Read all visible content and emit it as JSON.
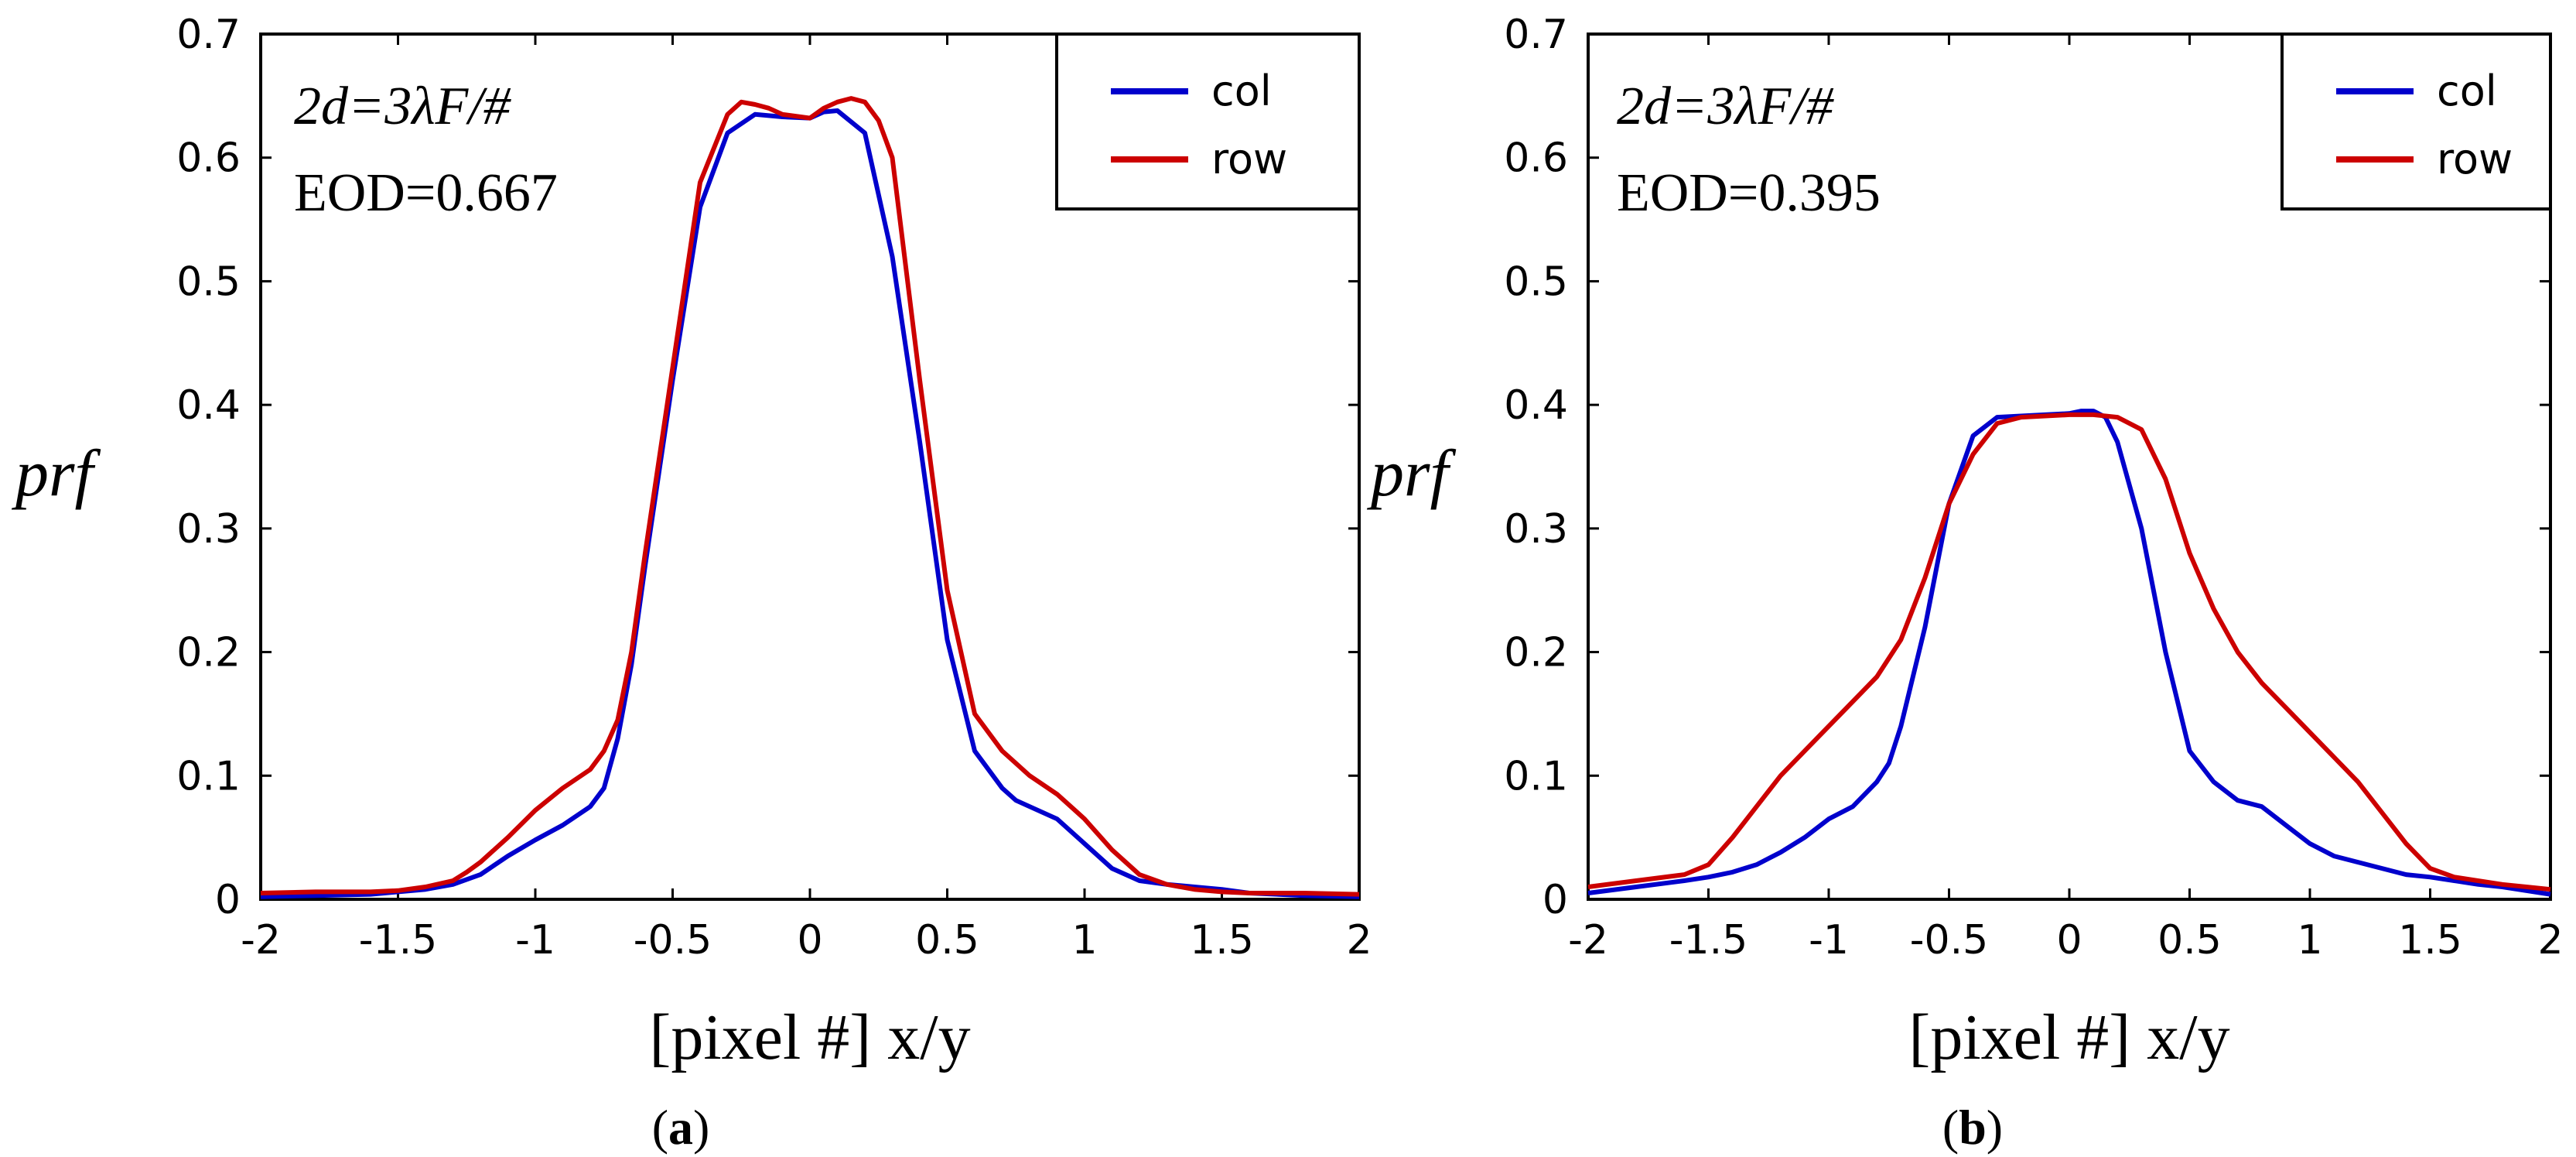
{
  "chart_data": [
    {
      "type": "line",
      "panel_label": "(a)",
      "panel_letter": "a",
      "ylabel": "prf",
      "xlabel": "[pixel #] x/y",
      "xlim": [
        -2,
        2
      ],
      "ylim": [
        0,
        0.7
      ],
      "xticks": [
        "-2",
        "-1.5",
        "-1",
        "-0.5",
        "0",
        "0.5",
        "1",
        "1.5",
        "2"
      ],
      "yticks": [
        "0",
        "0.1",
        "0.2",
        "0.3",
        "0.4",
        "0.5",
        "0.6",
        "0.7"
      ],
      "annotation_line1": "2d=3λF/#",
      "annotation_line2": "EOD=0.667",
      "legend_position": "top-right",
      "series": [
        {
          "name": "col",
          "color": "#0000cc",
          "x": [
            -2,
            -1.8,
            -1.6,
            -1.5,
            -1.4,
            -1.3,
            -1.2,
            -1.1,
            -1.0,
            -0.9,
            -0.8,
            -0.75,
            -0.7,
            -0.65,
            -0.6,
            -0.5,
            -0.4,
            -0.3,
            -0.2,
            -0.1,
            0.0,
            0.05,
            0.1,
            0.2,
            0.3,
            0.4,
            0.5,
            0.6,
            0.7,
            0.75,
            0.8,
            0.9,
            1.0,
            1.1,
            1.2,
            1.3,
            1.4,
            1.5,
            1.6,
            1.8,
            2.0
          ],
          "y": [
            0.002,
            0.003,
            0.004,
            0.006,
            0.008,
            0.012,
            0.02,
            0.035,
            0.048,
            0.06,
            0.075,
            0.09,
            0.13,
            0.19,
            0.27,
            0.42,
            0.56,
            0.62,
            0.635,
            0.633,
            0.632,
            0.637,
            0.638,
            0.62,
            0.52,
            0.37,
            0.21,
            0.12,
            0.09,
            0.08,
            0.075,
            0.065,
            0.045,
            0.025,
            0.015,
            0.012,
            0.01,
            0.008,
            0.005,
            0.003,
            0.002
          ]
        },
        {
          "name": "row",
          "color": "#cc0000",
          "x": [
            -2,
            -1.8,
            -1.6,
            -1.5,
            -1.4,
            -1.3,
            -1.25,
            -1.2,
            -1.1,
            -1.0,
            -0.9,
            -0.8,
            -0.75,
            -0.7,
            -0.65,
            -0.6,
            -0.5,
            -0.4,
            -0.3,
            -0.25,
            -0.2,
            -0.15,
            -0.1,
            0.0,
            0.05,
            0.1,
            0.15,
            0.2,
            0.25,
            0.3,
            0.4,
            0.5,
            0.6,
            0.7,
            0.75,
            0.8,
            0.9,
            1.0,
            1.1,
            1.2,
            1.3,
            1.4,
            1.5,
            1.6,
            1.8,
            2.0
          ],
          "y": [
            0.005,
            0.006,
            0.006,
            0.007,
            0.01,
            0.015,
            0.022,
            0.03,
            0.05,
            0.072,
            0.09,
            0.105,
            0.12,
            0.145,
            0.2,
            0.28,
            0.43,
            0.58,
            0.635,
            0.645,
            0.643,
            0.64,
            0.635,
            0.632,
            0.64,
            0.645,
            0.648,
            0.645,
            0.63,
            0.6,
            0.42,
            0.25,
            0.15,
            0.12,
            0.11,
            0.1,
            0.085,
            0.065,
            0.04,
            0.02,
            0.012,
            0.008,
            0.006,
            0.005,
            0.005,
            0.004
          ]
        }
      ]
    },
    {
      "type": "line",
      "panel_label": "(b)",
      "panel_letter": "b",
      "ylabel": "prf",
      "xlabel": "[pixel #] x/y",
      "xlim": [
        -2,
        2
      ],
      "ylim": [
        0,
        0.7
      ],
      "xticks": [
        "-2",
        "-1.5",
        "-1",
        "-0.5",
        "0",
        "0.5",
        "1",
        "1.5",
        "2"
      ],
      "yticks": [
        "0",
        "0.1",
        "0.2",
        "0.3",
        "0.4",
        "0.5",
        "0.6",
        "0.7"
      ],
      "annotation_line1": "2d=3λF/#",
      "annotation_line2": "EOD=0.395",
      "legend_position": "top-right",
      "series": [
        {
          "name": "col",
          "color": "#0000cc",
          "x": [
            -2,
            -1.8,
            -1.6,
            -1.5,
            -1.4,
            -1.3,
            -1.2,
            -1.1,
            -1.0,
            -0.9,
            -0.85,
            -0.8,
            -0.75,
            -0.7,
            -0.6,
            -0.5,
            -0.4,
            -0.3,
            -0.2,
            -0.1,
            0.0,
            0.05,
            0.1,
            0.15,
            0.2,
            0.3,
            0.4,
            0.5,
            0.6,
            0.7,
            0.8,
            0.9,
            1.0,
            1.1,
            1.2,
            1.3,
            1.4,
            1.5,
            1.6,
            1.7,
            1.8,
            2.0
          ],
          "y": [
            0.005,
            0.01,
            0.015,
            0.018,
            0.022,
            0.028,
            0.038,
            0.05,
            0.065,
            0.075,
            0.085,
            0.095,
            0.11,
            0.14,
            0.22,
            0.32,
            0.375,
            0.39,
            0.391,
            0.392,
            0.393,
            0.395,
            0.395,
            0.39,
            0.37,
            0.3,
            0.2,
            0.12,
            0.095,
            0.08,
            0.075,
            0.06,
            0.045,
            0.035,
            0.03,
            0.025,
            0.02,
            0.018,
            0.015,
            0.012,
            0.01,
            0.004
          ]
        },
        {
          "name": "row",
          "color": "#cc0000",
          "x": [
            -2,
            -1.8,
            -1.6,
            -1.5,
            -1.4,
            -1.3,
            -1.2,
            -1.1,
            -1.0,
            -0.9,
            -0.8,
            -0.7,
            -0.6,
            -0.5,
            -0.4,
            -0.3,
            -0.2,
            -0.1,
            0.0,
            0.1,
            0.2,
            0.3,
            0.4,
            0.5,
            0.6,
            0.7,
            0.8,
            0.9,
            1.0,
            1.1,
            1.2,
            1.3,
            1.4,
            1.5,
            1.6,
            1.8,
            2.0
          ],
          "y": [
            0.01,
            0.015,
            0.02,
            0.028,
            0.05,
            0.075,
            0.1,
            0.12,
            0.14,
            0.16,
            0.18,
            0.21,
            0.26,
            0.32,
            0.36,
            0.385,
            0.39,
            0.391,
            0.392,
            0.392,
            0.39,
            0.38,
            0.34,
            0.28,
            0.235,
            0.2,
            0.175,
            0.155,
            0.135,
            0.115,
            0.095,
            0.07,
            0.045,
            0.025,
            0.018,
            0.012,
            0.008
          ]
        }
      ]
    }
  ]
}
